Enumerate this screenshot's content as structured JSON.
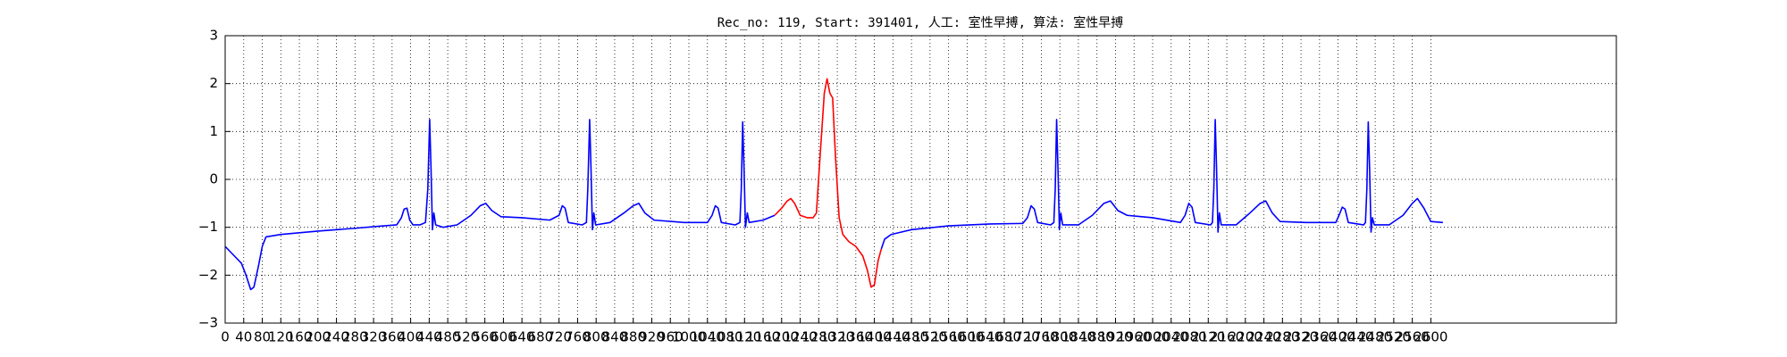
{
  "chart_data": {
    "type": "line",
    "title": "Rec_no: 119, Start: 391401, 人工: 室性早搏, 算法: 室性早搏",
    "xlim": [
      0,
      3000
    ],
    "ylim": [
      -3,
      3
    ],
    "xticks": [
      0,
      40,
      80,
      120,
      160,
      200,
      240,
      280,
      320,
      360,
      400,
      440,
      480,
      520,
      560,
      600,
      640,
      680,
      720,
      760,
      800,
      840,
      880,
      920,
      960,
      1000,
      1040,
      1080,
      1120,
      1160,
      1200,
      1240,
      1280,
      1320,
      1360,
      1400,
      1440,
      1480,
      1520,
      1560,
      1600,
      1640,
      1680,
      1720,
      1760,
      1800,
      1840,
      1880,
      1920,
      1960,
      2000,
      2040,
      2080,
      2120,
      2160,
      2200,
      2240,
      2280,
      2320,
      2360,
      2400,
      2440,
      2480,
      2520,
      2560,
      2600
    ],
    "yticks": [
      {
        "value": -3,
        "label": "−3"
      },
      {
        "value": -2,
        "label": "−2"
      },
      {
        "value": -1,
        "label": "−1"
      },
      0,
      1,
      2,
      3
    ],
    "grid": true,
    "series": [
      {
        "color": "#0000ff",
        "x": [
          0,
          10,
          20,
          35,
          45,
          55,
          62,
          72,
          80,
          88,
          120,
          200,
          280,
          330,
          370,
          380,
          386,
          392,
          398,
          405,
          420,
          432,
          437,
          441,
          444,
          447,
          450,
          454,
          470,
          500,
          530,
          550,
          562,
          575,
          595,
          640,
          700,
          720,
          727,
          733,
          740,
          770,
          779,
          782,
          786,
          789,
          792,
          795,
          799,
          830,
          860,
          880,
          892,
          905,
          925,
          990,
          1040,
          1050,
          1057,
          1063,
          1070,
          1100,
          1110,
          1113,
          1116,
          1119,
          1122,
          1126,
          1130,
          1160,
          1185
        ],
        "values": [
          -1.4,
          -1.5,
          -1.6,
          -1.75,
          -2.0,
          -2.3,
          -2.25,
          -1.8,
          -1.4,
          -1.2,
          -1.15,
          -1.08,
          -1.02,
          -0.98,
          -0.95,
          -0.8,
          -0.62,
          -0.6,
          -0.85,
          -0.95,
          -0.95,
          -0.9,
          -0.2,
          1.25,
          0.2,
          -1.05,
          -0.7,
          -0.95,
          -1.0,
          -0.95,
          -0.75,
          -0.55,
          -0.5,
          -0.65,
          -0.78,
          -0.8,
          -0.85,
          -0.75,
          -0.55,
          -0.6,
          -0.9,
          -0.95,
          -0.9,
          -0.2,
          1.25,
          0.2,
          -1.05,
          -0.7,
          -0.95,
          -0.9,
          -0.7,
          -0.55,
          -0.5,
          -0.7,
          -0.85,
          -0.9,
          -0.9,
          -0.75,
          -0.55,
          -0.6,
          -0.9,
          -0.95,
          -0.9,
          -0.2,
          1.2,
          0.2,
          -1.0,
          -0.7,
          -0.9,
          -0.85,
          -0.75
        ]
      },
      {
        "color": "#ff0000",
        "x": [
          1185,
          1200,
          1212,
          1220,
          1228,
          1240,
          1255,
          1268,
          1275,
          1283,
          1292,
          1298,
          1304,
          1310,
          1316,
          1324,
          1332,
          1345,
          1360,
          1375,
          1385,
          1393,
          1400,
          1408,
          1415
        ],
        "values": [
          -0.75,
          -0.6,
          -0.45,
          -0.4,
          -0.5,
          -0.75,
          -0.8,
          -0.8,
          -0.7,
          0.5,
          1.8,
          2.1,
          1.8,
          1.7,
          0.5,
          -0.8,
          -1.15,
          -1.3,
          -1.4,
          -1.6,
          -1.9,
          -2.25,
          -2.2,
          -1.7,
          -1.45
        ]
      },
      {
        "color": "#0000ff",
        "x": [
          1415,
          1422,
          1436,
          1480,
          1560,
          1650,
          1720,
          1730,
          1738,
          1745,
          1752,
          1780,
          1787,
          1790,
          1793,
          1796,
          1799,
          1802,
          1806,
          1840,
          1870,
          1895,
          1909,
          1925,
          1945,
          2000,
          2060,
          2070,
          2078,
          2085,
          2092,
          2125,
          2129,
          2132,
          2135,
          2138,
          2141,
          2144,
          2148,
          2180,
          2210,
          2232,
          2244,
          2258,
          2275,
          2330,
          2395,
          2402,
          2409,
          2415,
          2422,
          2455,
          2459,
          2462,
          2465,
          2468,
          2471,
          2474,
          2478,
          2510,
          2540,
          2560,
          2571,
          2585,
          2600,
          2626
        ],
        "values": [
          -1.45,
          -1.25,
          -1.15,
          -1.05,
          -0.97,
          -0.93,
          -0.92,
          -0.8,
          -0.55,
          -0.62,
          -0.9,
          -0.95,
          -0.9,
          -0.2,
          1.25,
          0.2,
          -1.05,
          -0.7,
          -0.95,
          -0.95,
          -0.75,
          -0.5,
          -0.45,
          -0.65,
          -0.75,
          -0.8,
          -0.9,
          -0.75,
          -0.5,
          -0.58,
          -0.9,
          -0.95,
          -0.9,
          -0.2,
          1.25,
          0.2,
          -1.1,
          -0.7,
          -0.95,
          -0.95,
          -0.7,
          -0.5,
          -0.45,
          -0.7,
          -0.88,
          -0.9,
          -0.9,
          -0.75,
          -0.58,
          -0.62,
          -0.9,
          -0.95,
          -0.9,
          -0.2,
          1.2,
          0.2,
          -1.1,
          -0.8,
          -0.95,
          -0.95,
          -0.75,
          -0.5,
          -0.4,
          -0.6,
          -0.88,
          -0.9
        ]
      }
    ]
  }
}
